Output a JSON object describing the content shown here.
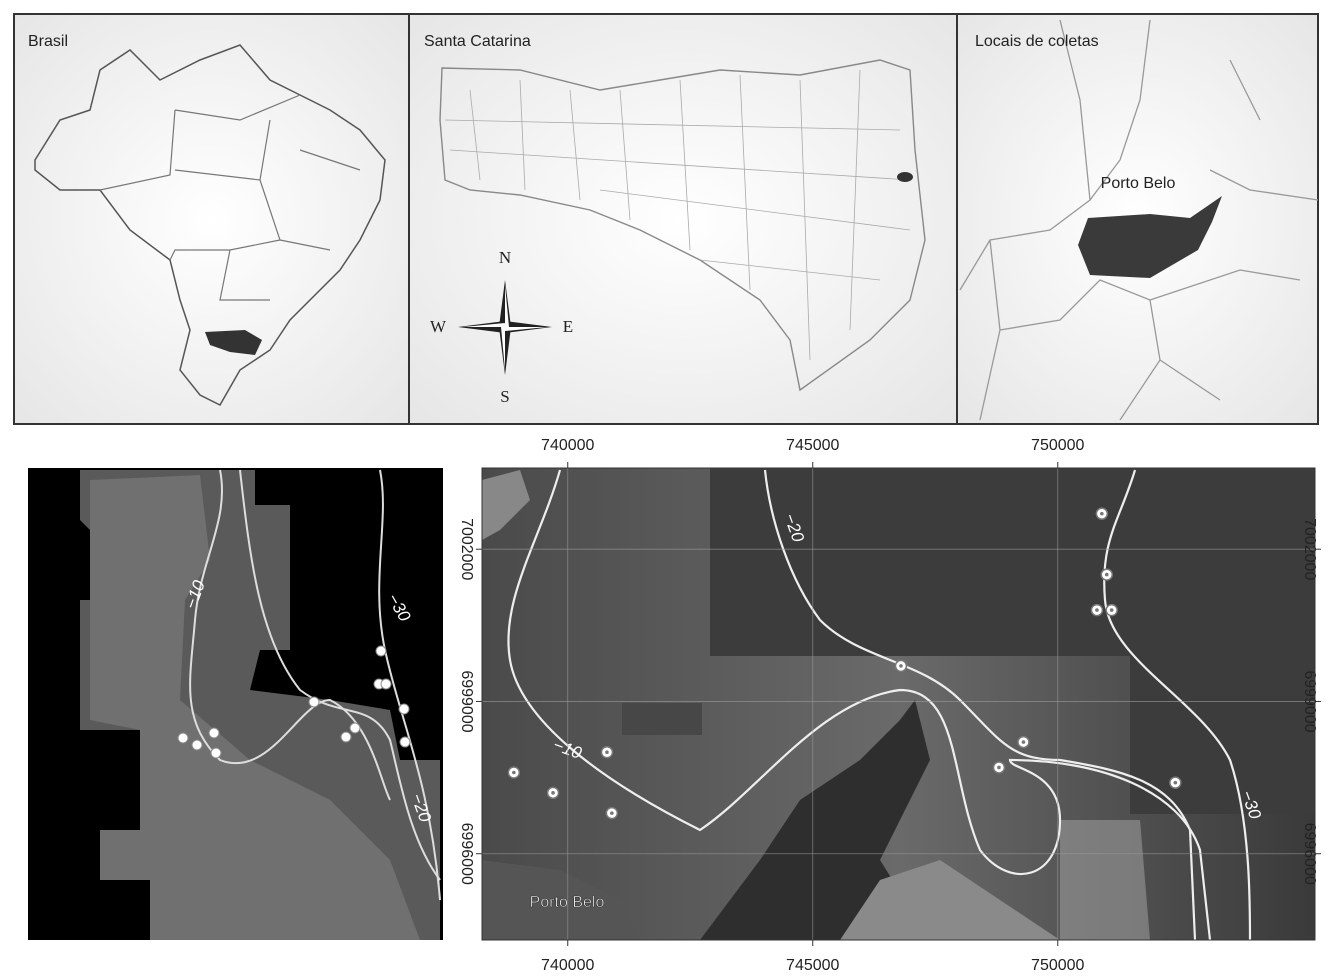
{
  "panels": [
    {
      "title": "Brasil"
    },
    {
      "title": "Santa Catarina",
      "compass": {
        "n": "N",
        "s": "S",
        "e": "E",
        "w": "W"
      }
    },
    {
      "title": "Locais de coletas",
      "place_label": "Porto Belo"
    }
  ],
  "overview_map": {
    "contour_labels": [
      "−10",
      "−30",
      "−20"
    ]
  },
  "detail_map": {
    "xlim": [
      738250,
      755250
    ],
    "ylim": [
      6994300,
      7003600
    ],
    "xticks": [
      740000,
      745000,
      750000
    ],
    "yticks": [
      7002000,
      6999000,
      6996000
    ],
    "grid": true,
    "place_label": "Porto Belo",
    "contour_labels": [
      "−20",
      "−10",
      "−30"
    ],
    "sites": {
      "x": [
        750900,
        751000,
        750800,
        751100,
        746800,
        749300,
        748800,
        752400,
        740800,
        738900,
        739700,
        740900
      ],
      "y": [
        7002700,
        7001500,
        7000800,
        7000800,
        6999700,
        6998200,
        6997700,
        6997400,
        6998000,
        6997600,
        6997200,
        6996800
      ]
    }
  }
}
